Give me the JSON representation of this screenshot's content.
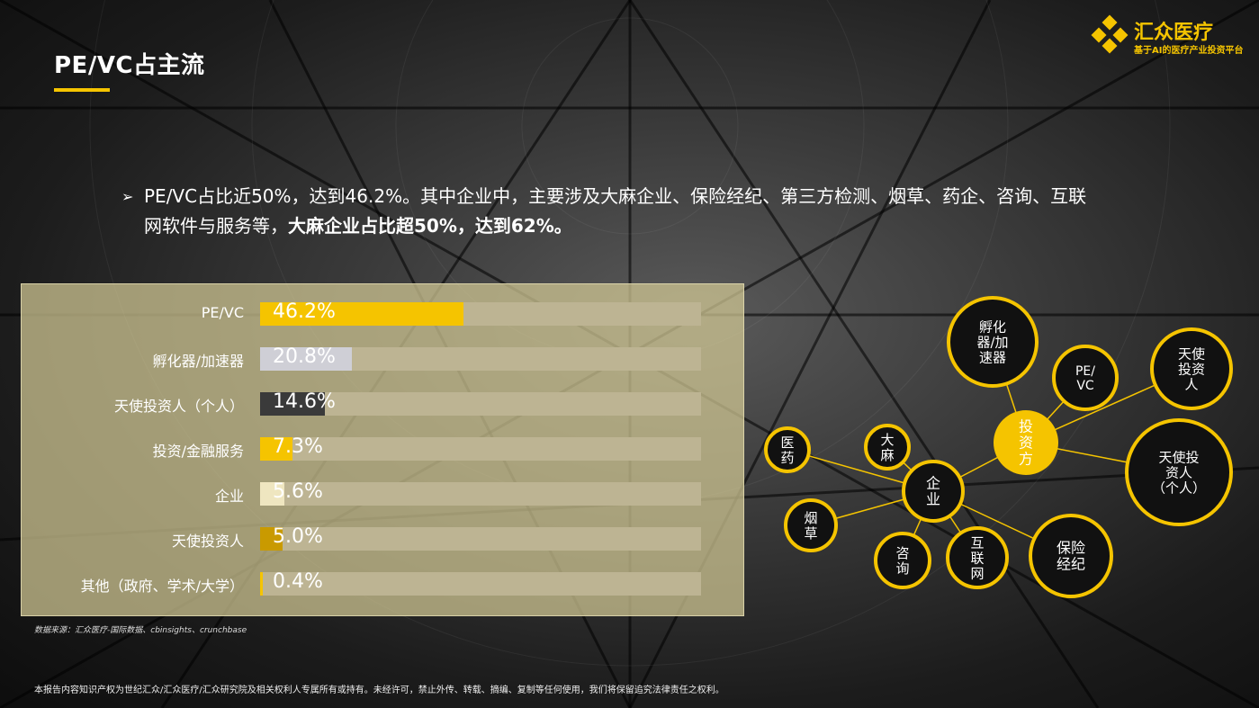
{
  "page": {
    "title": "PE/VC占主流",
    "logo_name": "汇众医疗",
    "logo_sub": "基于AI的医疗产业投资平台",
    "bullet_arrow": "➢",
    "bullet_text": "PE/VC占比近50%，达到46.2%。其中企业中，主要涉及大麻企业、保险经纪、第三方检测、烟草、药企、咨询、互联网软件与服务等，",
    "bullet_bold": "大麻企业占比超50%，达到62%。",
    "source": "数据来源：汇众医疗-国际数据、cbinsights、crunchbase",
    "footer": "本报告内容知识产权为世纪汇众/汇众医疗/汇众研究院及相关权利人专属所有或持有。未经许可，禁止外传、转载、摘编、复制等任何使用，我们将保留追究法律责任之权利。"
  },
  "colors": {
    "accent": "#f5c400"
  },
  "chart_data": {
    "type": "bar",
    "orientation": "horizontal",
    "categories": [
      "PE/VC",
      "孵化器/加速器",
      "天使投资人（个人）",
      "投资/金融服务",
      "企业",
      "天使投资人",
      "其他（政府、学术/大学）"
    ],
    "values": [
      46.2,
      20.8,
      14.6,
      7.3,
      5.6,
      5.0,
      0.4
    ],
    "labels": [
      "46.2%",
      "20.8%",
      "14.6%",
      "7.3%",
      "5.6%",
      "5.0%",
      "0.4%"
    ],
    "bar_colors": [
      "#f5c400",
      "#cfcfd6",
      "#3a3a3a",
      "#f5c400",
      "#efe6c0",
      "#c99a00",
      "#f5c400"
    ],
    "xlim": [
      0,
      100
    ],
    "title": "",
    "xlabel": "",
    "ylabel": ""
  },
  "diagram": {
    "hub": "投资方",
    "investor_nodes": [
      "孵化器/加速器",
      "PE/VC",
      "天使投资人",
      "天使投资人（个人）"
    ],
    "company_hub": "企业",
    "company_nodes": [
      "医药",
      "大麻",
      "烟草",
      "咨询",
      "互联网",
      "保险经纪"
    ]
  }
}
